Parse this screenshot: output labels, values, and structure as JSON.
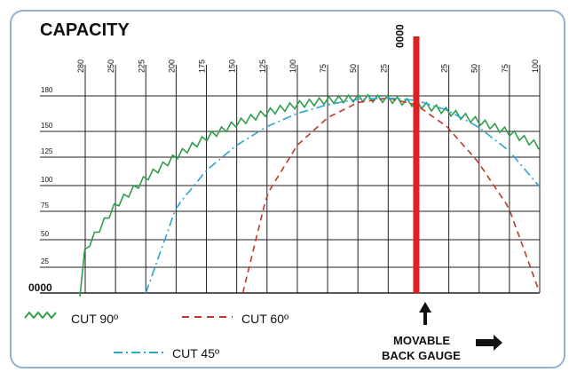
{
  "chart_data": {
    "type": "line",
    "title": "CAPACITY",
    "x_ticks_left": [
      "280",
      "250",
      "225",
      "200",
      "175",
      "150",
      "125",
      "100",
      "75",
      "50",
      "25"
    ],
    "x_zero_label": "0000",
    "x_ticks_right": [
      "25",
      "50",
      "75",
      "100"
    ],
    "y_ticks": [
      "180",
      "150",
      "125",
      "100",
      "75",
      "50",
      "25"
    ],
    "y_zero_label": "0000",
    "y_range": [
      0,
      180
    ],
    "grid": true,
    "back_gauge_arrow_label_line1": "MOVABLE",
    "back_gauge_arrow_label_line2": "BACK GAUGE",
    "legend": {
      "cut90": "CUT 90º",
      "cut60": "CUT 60º",
      "cut45": "CUT 45º"
    },
    "colors": {
      "cut90": "#2e9e4a",
      "cut60": "#c0392b",
      "cut45": "#2aa6cf",
      "back_gauge": "#e0201f",
      "grid": "#222222",
      "frame": "#8fb3d6"
    },
    "series": [
      {
        "key": "cut90",
        "name": "CUT 90º",
        "style": "zigzag",
        "x": [
          -300,
          -280,
          -250,
          -225,
          -200,
          -175,
          -150,
          -125,
          -100,
          -75,
          -50,
          -25,
          0,
          25,
          50,
          75,
          100
        ],
        "y": [
          0,
          40,
          80,
          105,
          125,
          142,
          155,
          165,
          172,
          176,
          178,
          177,
          173,
          166,
          157,
          147,
          134
        ]
      },
      {
        "key": "cut60",
        "name": "CUT 60º",
        "style": "dashed",
        "x": [
          -145,
          -125,
          -100,
          -75,
          -50,
          -25,
          0,
          25,
          50,
          75,
          100
        ],
        "y": [
          0,
          90,
          135,
          160,
          174,
          178,
          172,
          152,
          120,
          78,
          0
        ]
      },
      {
        "key": "cut45",
        "name": "CUT 45º",
        "style": "dash-dot",
        "x": [
          -225,
          -200,
          -175,
          -150,
          -125,
          -100,
          -75,
          -50,
          -25,
          0,
          25,
          50,
          75,
          100
        ],
        "y": [
          0,
          78,
          112,
          135,
          152,
          164,
          172,
          177,
          178,
          176,
          167,
          152,
          130,
          97
        ]
      }
    ]
  }
}
